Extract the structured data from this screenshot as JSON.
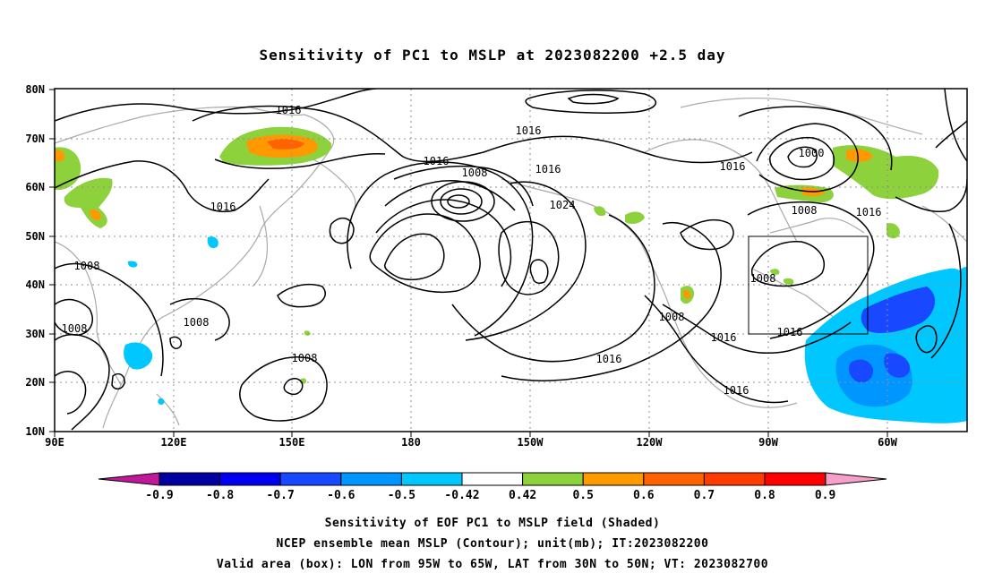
{
  "title": "Sensitivity of PC1 to MSLP at 2023082200 +2.5 day",
  "lat_labels": [
    "80N",
    "70N",
    "60N",
    "50N",
    "40N",
    "30N",
    "20N",
    "10N"
  ],
  "lon_labels": [
    "90E",
    "120E",
    "150E",
    "180",
    "150W",
    "120W",
    "90W",
    "60W"
  ],
  "contour_labels": [
    "1016",
    "1016",
    "1016",
    "1016",
    "1016",
    "1016",
    "1000",
    "1008",
    "1016",
    "1008",
    "1024",
    "1008",
    "1008",
    "1008",
    "1008",
    "1008",
    "1016",
    "1016",
    "1016",
    "1008",
    "1016",
    "1016"
  ],
  "colorbar": {
    "ticks": [
      "-0.9",
      "-0.8",
      "-0.7",
      "-0.6",
      "-0.5",
      "-0.42",
      "0.42",
      "0.5",
      "0.6",
      "0.7",
      "0.8",
      "0.9"
    ],
    "colors": [
      "#0000a0",
      "#0000f0",
      "#1848ff",
      "#0096ff",
      "#00c8ff",
      "#ffffff",
      "#8dd13c",
      "#ff9900",
      "#ff6200",
      "#ff3c00",
      "#ff0000"
    ],
    "low_color": "#c0189a",
    "high_color": "#f5a0c8"
  },
  "valid_box": {
    "lon_range": [
      "95W",
      "65W"
    ],
    "lat_range": [
      "30N",
      "50N"
    ]
  },
  "captions": [
    "Sensitivity of EOF PC1 to MSLP field (Shaded)",
    "NCEP ensemble mean MSLP (Contour); unit(mb); IT:2023082200",
    "Valid area (box): LON from 95W to 65W, LAT from 30N to 50N; VT: 2023082700"
  ]
}
